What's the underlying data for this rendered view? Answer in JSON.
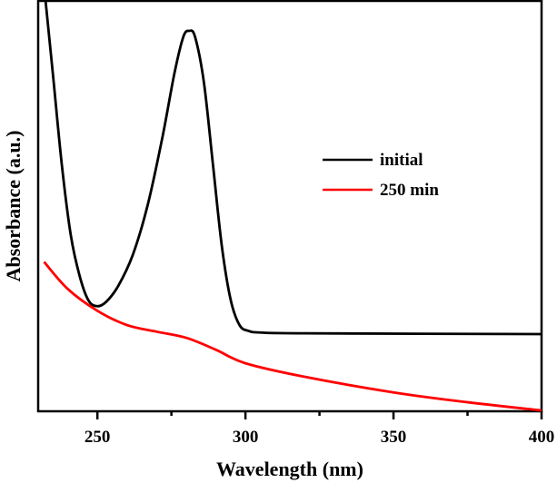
{
  "chart_data": {
    "type": "line",
    "title": "",
    "xlabel": "Wavelength (nm)",
    "ylabel": "Absorbance (a.u.)",
    "xlim": [
      230,
      400
    ],
    "ylim": [
      0,
      1
    ],
    "xticks": [
      250,
      300,
      350,
      400
    ],
    "xtick_labels": [
      "250",
      "300",
      "350",
      "400"
    ],
    "x_minor_ticks": [
      275,
      325,
      375
    ],
    "grid": false,
    "legend_position": "center-right",
    "series": [
      {
        "name": "initial",
        "color": "#000000",
        "x": [
          232.5,
          235,
          238,
          241,
          244,
          247,
          250,
          253,
          257,
          262,
          267,
          272,
          276,
          279,
          281,
          283,
          286,
          289,
          292,
          295,
          298,
          301,
          305,
          320,
          400
        ],
        "y": [
          1.0,
          0.82,
          0.6,
          0.43,
          0.33,
          0.27,
          0.256,
          0.267,
          0.305,
          0.382,
          0.503,
          0.669,
          0.823,
          0.912,
          0.927,
          0.912,
          0.8,
          0.603,
          0.404,
          0.272,
          0.21,
          0.196,
          0.192,
          0.19,
          0.188
        ]
      },
      {
        "name": "250 min",
        "color": "#ff0000",
        "x": [
          232,
          240,
          250,
          260,
          270,
          280,
          290,
          300,
          320,
          350,
          375,
          400
        ],
        "y": [
          0.364,
          0.298,
          0.245,
          0.21,
          0.194,
          0.179,
          0.15,
          0.117,
          0.084,
          0.046,
          0.022,
          0.002
        ]
      }
    ]
  }
}
